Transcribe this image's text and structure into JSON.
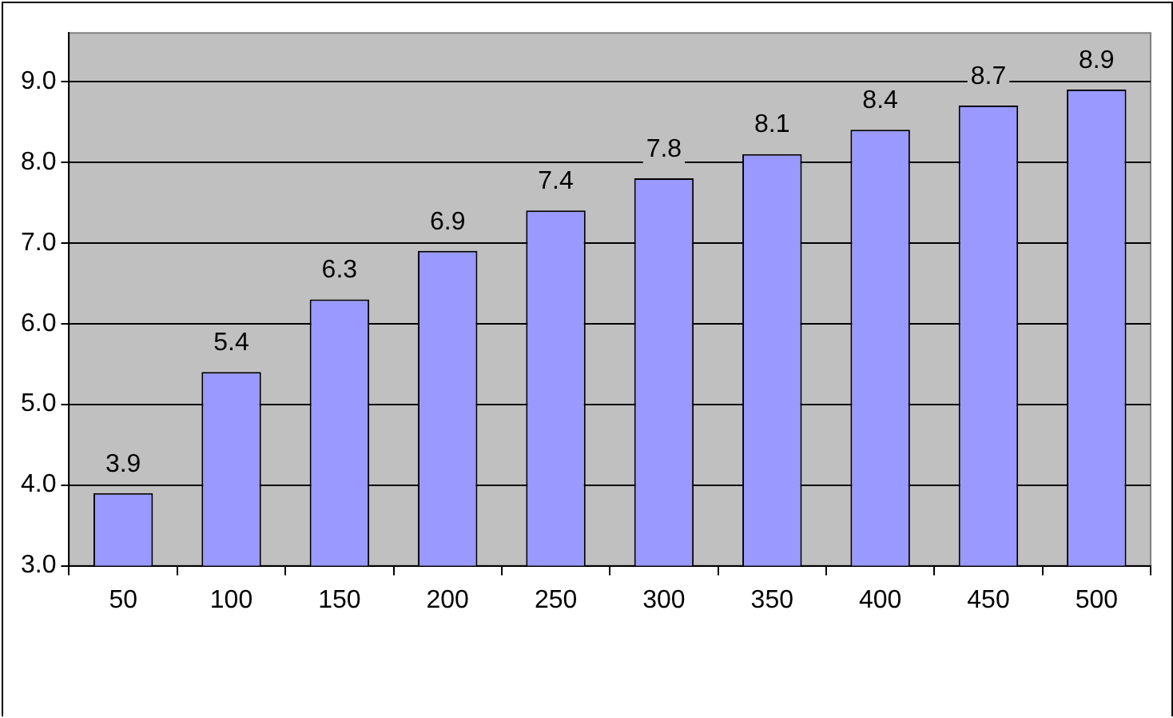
{
  "chart_data": {
    "type": "bar",
    "categories": [
      "50",
      "100",
      "150",
      "200",
      "250",
      "300",
      "350",
      "400",
      "450",
      "500"
    ],
    "values": [
      3.9,
      5.4,
      6.3,
      6.9,
      7.4,
      7.8,
      8.1,
      8.4,
      8.7,
      8.9
    ],
    "color": "#9999ff",
    "ylim": [
      3,
      9.6
    ],
    "yticks": [
      {
        "value": 3,
        "label": "3.0"
      },
      {
        "value": 4,
        "label": "4.0"
      },
      {
        "value": 5,
        "label": "5.0"
      },
      {
        "value": 6,
        "label": "6.0"
      },
      {
        "value": 7,
        "label": "7.0"
      },
      {
        "value": 8,
        "label": "8.0"
      },
      {
        "value": 9,
        "label": "9.0"
      }
    ],
    "grid": "y",
    "data_labels": true,
    "legend": false
  }
}
